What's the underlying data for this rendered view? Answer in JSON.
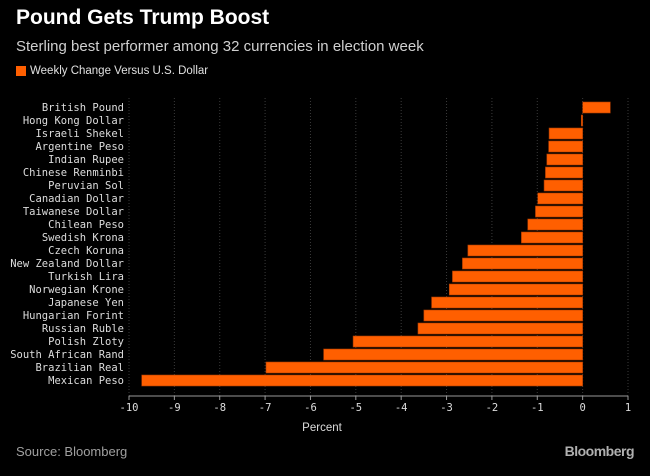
{
  "title": "Pound Gets Trump Boost",
  "subtitle": "Sterling best performer among 32 currencies in election week",
  "source": "Source: Bloomberg",
  "logo": "Bloomberg",
  "chart_data": {
    "type": "bar",
    "orientation": "horizontal",
    "categories": [
      "British Pound",
      "Hong Kong Dollar",
      "Israeli Shekel",
      "Argentine Peso",
      "Indian Rupee",
      "Chinese Renminbi",
      "Peruvian Sol",
      "Canadian Dollar",
      "Taiwanese Dollar",
      "Chilean Peso",
      "Swedish Krona",
      "Czech Koruna",
      "New Zealand Dollar",
      "Turkish Lira",
      "Norwegian Krone",
      "Japanese Yen",
      "Hungarian Forint",
      "Russian Ruble",
      "Polish Zloty",
      "South African Rand",
      "Brazilian Real",
      "Mexican Peso"
    ],
    "series": [
      {
        "name": "Weekly Change Versus U.S. Dollar",
        "values": [
          0.61,
          -0.03,
          -0.74,
          -0.75,
          -0.79,
          -0.82,
          -0.85,
          -0.99,
          -1.04,
          -1.21,
          -1.35,
          -2.53,
          -2.65,
          -2.87,
          -2.94,
          -3.33,
          -3.5,
          -3.63,
          -5.06,
          -5.71,
          -6.98,
          -9.72
        ]
      }
    ],
    "xlabel": "Percent",
    "xlim": [
      -10,
      1
    ],
    "xticks": [
      -10,
      -9,
      -8,
      -7,
      -6,
      -5,
      -4,
      -3,
      -2,
      -1,
      0,
      1
    ],
    "grid": "vertical dotted",
    "legend": "top-left",
    "bar_color": "#ff5f00",
    "background": "#000000"
  }
}
